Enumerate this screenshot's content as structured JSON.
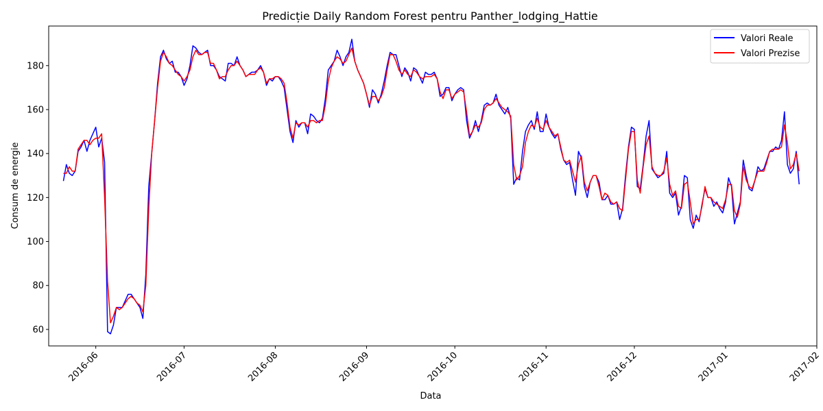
{
  "chart_data": {
    "type": "line",
    "title": "Predicție Daily Random Forest pentru Panther_lodging_Hattie",
    "xlabel": "Data",
    "ylabel": "Consum de energie",
    "x_start": "2016-05-21",
    "x_end": "2017-01-26",
    "xlim": [
      "2016-05-16",
      "2017-02-01"
    ],
    "ylim": [
      52.5,
      198
    ],
    "x_ticks": [
      "2016-06",
      "2016-07",
      "2016-08",
      "2016-09",
      "2016-10",
      "2016-11",
      "2016-12",
      "2017-01",
      "2017-02"
    ],
    "y_ticks": [
      60,
      80,
      100,
      120,
      140,
      160,
      180
    ],
    "grid": false,
    "legend_position": "top-right",
    "series": [
      {
        "name": "Valori Reale",
        "color": "#0000ff",
        "values": [
          127.5,
          135,
          131,
          130,
          132,
          141,
          143,
          146,
          141,
          146,
          149,
          152,
          143,
          147,
          136,
          59,
          58,
          62,
          70,
          70,
          70,
          73,
          76,
          76,
          74,
          72,
          70,
          65,
          85,
          125,
          140,
          155,
          172,
          184,
          187,
          183,
          181,
          182,
          177,
          177,
          175,
          171,
          174,
          180,
          189,
          188,
          186,
          185,
          186,
          187,
          180,
          180,
          178,
          175,
          174,
          173,
          181,
          181,
          180,
          184,
          180,
          178,
          175,
          176,
          177,
          177,
          178,
          180,
          177,
          171,
          174,
          173,
          175,
          175,
          173,
          170,
          160,
          150,
          145,
          155,
          152,
          154,
          154,
          149,
          158,
          157,
          155,
          154,
          156,
          165,
          178,
          180,
          182,
          187,
          184,
          180,
          184,
          186,
          192,
          182,
          178,
          175,
          172,
          167,
          161,
          169,
          167,
          163,
          167,
          173,
          180,
          186,
          185,
          185,
          180,
          175,
          179,
          177,
          173,
          179,
          178,
          175,
          172,
          177,
          176,
          176,
          177,
          174,
          166,
          167,
          170,
          170,
          164,
          167,
          169,
          170,
          169,
          155,
          147,
          150,
          155,
          150,
          155,
          162,
          163,
          162,
          163,
          167,
          162,
          160,
          158,
          161,
          156,
          126,
          129,
          128,
          141,
          150,
          153,
          155,
          151,
          159,
          150,
          150,
          158,
          152,
          149,
          147,
          149,
          142,
          137,
          135,
          136,
          128,
          121,
          141,
          138,
          125,
          120,
          127,
          130,
          130,
          127,
          119,
          119,
          121,
          117,
          117,
          118,
          110,
          115,
          130,
          143,
          152,
          151,
          125,
          124,
          135,
          148,
          155,
          133,
          131,
          129,
          130,
          131,
          141,
          122,
          120,
          122,
          112,
          116,
          130,
          129,
          110,
          106,
          112,
          109,
          117,
          124,
          120,
          120,
          116,
          118,
          115,
          113,
          118,
          129,
          125,
          108,
          113,
          118,
          137,
          130,
          124,
          123,
          128,
          134,
          132,
          133,
          137,
          141,
          141,
          143,
          142,
          146,
          159,
          135,
          131,
          133,
          141,
          126
        ]
      },
      {
        "name": "Valori Prezise",
        "color": "#ff0000",
        "values": [
          131,
          131,
          134,
          132,
          132,
          142,
          144,
          146,
          146,
          144,
          146,
          147,
          147,
          149,
          120,
          82,
          63,
          66,
          70,
          69,
          70,
          72,
          74,
          75,
          74,
          72,
          71,
          68,
          80,
          115,
          140,
          155,
          170,
          182,
          186,
          184,
          181,
          180,
          178,
          176,
          175,
          173,
          175,
          178,
          184,
          187,
          185,
          185,
          186,
          186,
          181,
          181,
          178,
          174,
          175,
          175,
          178,
          180,
          180,
          182,
          180,
          178,
          175,
          176,
          176,
          176,
          178,
          179,
          177,
          172,
          174,
          174,
          175,
          175,
          174,
          172,
          163,
          152,
          147,
          154,
          153,
          154,
          154,
          152,
          155,
          155,
          154,
          155,
          155,
          162,
          173,
          179,
          182,
          184,
          183,
          181,
          182,
          185,
          188,
          182,
          178,
          175,
          172,
          167,
          162,
          166,
          166,
          164,
          166,
          170,
          178,
          185,
          185,
          182,
          178,
          176,
          178,
          176,
          175,
          178,
          177,
          175,
          174,
          175,
          175,
          175,
          176,
          174,
          168,
          165,
          169,
          169,
          165,
          167,
          168,
          169,
          168,
          159,
          148,
          150,
          153,
          152,
          154,
          160,
          162,
          162,
          163,
          165,
          163,
          161,
          160,
          159,
          157,
          135,
          128,
          130,
          134,
          145,
          150,
          153,
          152,
          156,
          152,
          151,
          155,
          152,
          150,
          148,
          149,
          143,
          137,
          136,
          137,
          132,
          127,
          135,
          139,
          127,
          123,
          127,
          130,
          130,
          125,
          119,
          122,
          121,
          118,
          117,
          118,
          115,
          114,
          128,
          142,
          150,
          150,
          128,
          122,
          134,
          144,
          148,
          134,
          131,
          130,
          130,
          132,
          138,
          126,
          121,
          123,
          116,
          115,
          126,
          127,
          118,
          108,
          110,
          110,
          116,
          125,
          120,
          120,
          118,
          117,
          116,
          115,
          119,
          126,
          126,
          114,
          111,
          117,
          134,
          128,
          125,
          124,
          128,
          132,
          132,
          132,
          136,
          141,
          142,
          142,
          142,
          143,
          153,
          145,
          133,
          135,
          140,
          132
        ]
      }
    ]
  }
}
